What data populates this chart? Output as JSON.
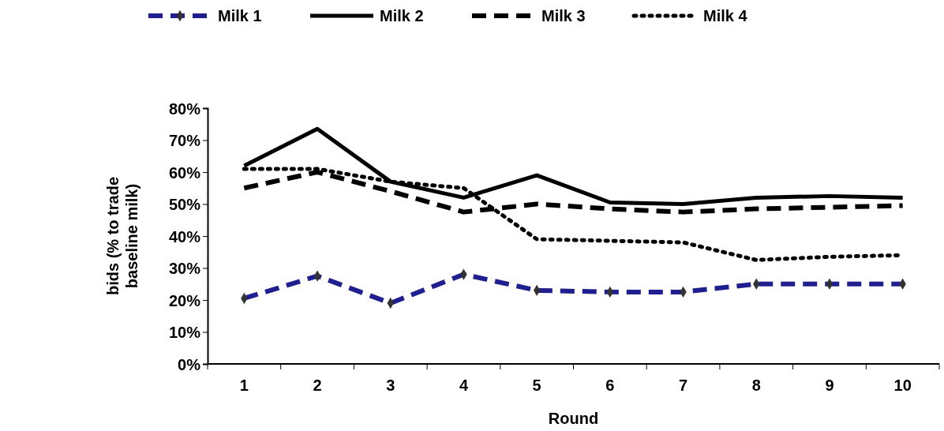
{
  "chart_data": {
    "type": "line",
    "xlabel": "Round",
    "ylabel": "bids (% to trade baseline milk)",
    "categories": [
      "1",
      "2",
      "3",
      "4",
      "5",
      "6",
      "7",
      "8",
      "9",
      "10"
    ],
    "ylim": [
      0,
      80
    ],
    "yticks": [
      {
        "value": 0,
        "label": "0%"
      },
      {
        "value": 10,
        "label": "10%"
      },
      {
        "value": 20,
        "label": "20%"
      },
      {
        "value": 30,
        "label": "30%"
      },
      {
        "value": 40,
        "label": "40%"
      },
      {
        "value": 50,
        "label": "50%"
      },
      {
        "value": 60,
        "label": "60%"
      },
      {
        "value": 70,
        "label": "70%"
      },
      {
        "value": 80,
        "label": "80%"
      }
    ],
    "legend": "top",
    "grid": false,
    "series": [
      {
        "name": "Milk 1",
        "color": "#1f1f8f",
        "line_style": "dashed",
        "marker": "diamond",
        "values": [
          20.5,
          27.5,
          19,
          28,
          23,
          22.5,
          22.5,
          25,
          25,
          25
        ]
      },
      {
        "name": "Milk 2",
        "color": "#000000",
        "line_style": "solid",
        "marker": "none",
        "values": [
          62,
          73.5,
          57,
          52,
          59,
          50.5,
          50,
          52,
          52.5,
          52
        ]
      },
      {
        "name": "Milk 3",
        "color": "#000000",
        "line_style": "dashed",
        "marker": "none",
        "values": [
          55,
          60,
          54,
          47.5,
          50,
          48.5,
          47.5,
          48.5,
          49,
          49.5
        ]
      },
      {
        "name": "Milk 4",
        "color": "#000000",
        "line_style": "dotted",
        "marker": "none",
        "values": [
          61,
          61,
          57,
          55,
          39,
          38.5,
          38,
          32.5,
          33.5,
          34
        ]
      }
    ]
  }
}
